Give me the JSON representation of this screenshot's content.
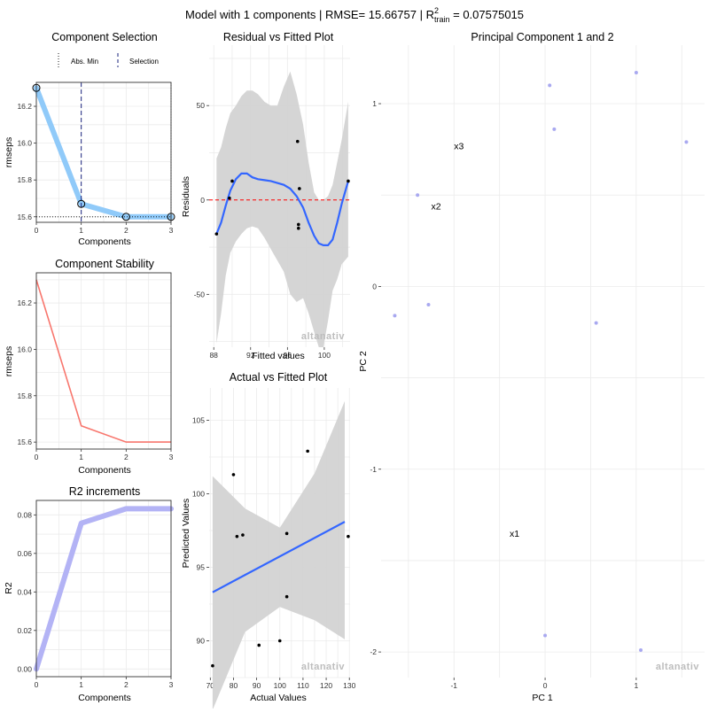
{
  "main_title": {
    "prefix": "Model with  1  components | RMSE=  15.66757 | R",
    "sup": "2",
    "sub": "train",
    "suffix": " = 0.07575015"
  },
  "watermark": "altanativ",
  "colors": {
    "selection_line": "#90caf9",
    "stability_line": "#f8766d",
    "r2_line": "#b3b3f5",
    "smooth_line": "#3366ff",
    "ribbon": "#d3d3d3",
    "zero_line": "#ff0000",
    "pca_points": "#a9a9f0",
    "grid": "#ebebeb",
    "watermark_dark": "#bdbdbd",
    "watermark_accent": "#f4a6b8"
  },
  "chart_data": [
    {
      "id": "component_selection",
      "type": "line",
      "title": "Component Selection",
      "xlabel": "Components",
      "ylabel": "rmseps",
      "x": [
        0,
        1,
        2,
        3
      ],
      "values": [
        16.3,
        15.67,
        15.6,
        15.6
      ],
      "xlim": [
        0,
        3
      ],
      "ylim": [
        15.57,
        16.33
      ],
      "xticks": [
        0,
        1,
        2,
        3
      ],
      "yticks": [
        15.6,
        15.8,
        16.0,
        16.2
      ],
      "ytick_labels": [
        "15.6",
        "15.8",
        "16.0",
        "16.2"
      ],
      "abs_min_x": 3,
      "abs_min_y": 15.6,
      "selection_x": 1,
      "legend": [
        "Abs. Min",
        "Selection"
      ]
    },
    {
      "id": "component_stability",
      "type": "line",
      "title": "Component Stability",
      "xlabel": "Components",
      "ylabel": "rmseps",
      "x": [
        0,
        1,
        2,
        3
      ],
      "values": [
        16.3,
        15.67,
        15.6,
        15.6
      ],
      "xlim": [
        0,
        3
      ],
      "ylim": [
        15.57,
        16.33
      ],
      "xticks": [
        0,
        1,
        2,
        3
      ],
      "yticks": [
        15.6,
        15.8,
        16.0,
        16.2
      ],
      "ytick_labels": [
        "15.6",
        "15.8",
        "16.0",
        "16.2"
      ]
    },
    {
      "id": "r2_increments",
      "type": "line",
      "title": "R2 increments",
      "xlabel": "Components",
      "ylabel": "R2",
      "x": [
        0,
        1,
        2,
        3
      ],
      "values": [
        0.0,
        0.0757,
        0.0832,
        0.0832
      ],
      "xlim": [
        0,
        3
      ],
      "ylim": [
        -0.004,
        0.0875
      ],
      "xticks": [
        0,
        1,
        2,
        3
      ],
      "yticks": [
        0,
        0.02,
        0.04,
        0.06,
        0.08
      ],
      "ytick_labels": [
        "0.00",
        "0.02",
        "0.04",
        "0.06",
        "0.08"
      ]
    },
    {
      "id": "residual_vs_fitted",
      "type": "scatter",
      "title": "Residual vs Fitted Plot",
      "xlabel": "Fitted values",
      "ylabel": "Residuals",
      "xlim": [
        87.5,
        102.8
      ],
      "ylim": [
        -78,
        82
      ],
      "xticks": [
        88,
        92,
        96,
        100
      ],
      "yticks": [
        -50,
        0,
        50
      ],
      "points": [
        {
          "x": 88.3,
          "y": -18
        },
        {
          "x": 89.7,
          "y": 1
        },
        {
          "x": 90.0,
          "y": 10
        },
        {
          "x": 97.1,
          "y": 31
        },
        {
          "x": 97.3,
          "y": 6
        },
        {
          "x": 97.2,
          "y": -13
        },
        {
          "x": 97.2,
          "y": -15
        },
        {
          "x": 102.6,
          "y": 10
        }
      ],
      "smooth": [
        {
          "x": 88.3,
          "y": -18
        },
        {
          "x": 88.8,
          "y": -12
        },
        {
          "x": 89.3,
          "y": -3
        },
        {
          "x": 89.8,
          "y": 5
        },
        {
          "x": 90.4,
          "y": 11
        },
        {
          "x": 91.0,
          "y": 14
        },
        {
          "x": 91.6,
          "y": 14
        },
        {
          "x": 92.2,
          "y": 12
        },
        {
          "x": 92.8,
          "y": 11
        },
        {
          "x": 93.5,
          "y": 10.5
        },
        {
          "x": 94.2,
          "y": 10
        },
        {
          "x": 94.9,
          "y": 9
        },
        {
          "x": 95.6,
          "y": 8
        },
        {
          "x": 96.3,
          "y": 6
        },
        {
          "x": 97.0,
          "y": 2
        },
        {
          "x": 97.7,
          "y": -4
        },
        {
          "x": 98.3,
          "y": -12
        },
        {
          "x": 98.9,
          "y": -19
        },
        {
          "x": 99.4,
          "y": -23
        },
        {
          "x": 99.9,
          "y": -24
        },
        {
          "x": 100.4,
          "y": -24
        },
        {
          "x": 100.9,
          "y": -21
        },
        {
          "x": 101.4,
          "y": -12
        },
        {
          "x": 101.9,
          "y": -2
        },
        {
          "x": 102.6,
          "y": 10
        }
      ],
      "band_upper": [
        22,
        28,
        38,
        46,
        50,
        55,
        58,
        58,
        56,
        52,
        50,
        50,
        60,
        68,
        56,
        40,
        20,
        4,
        0,
        0,
        2,
        8,
        20,
        32,
        52
      ],
      "band_lower": [
        -76,
        -60,
        -40,
        -28,
        -22,
        -18,
        -15,
        -14,
        -15,
        -20,
        -26,
        -32,
        -38,
        -50,
        -54,
        -52,
        -60,
        -70,
        -78,
        -78,
        -64,
        -48,
        -42,
        -34,
        -30
      ],
      "reference_y": 0
    },
    {
      "id": "actual_vs_fitted",
      "type": "scatter",
      "title": "Actual vs Fitted Plot",
      "xlabel": "Actual Values",
      "ylabel": "Predicted Values",
      "xlim": [
        69.5,
        130.3
      ],
      "ylim": [
        87.5,
        107.2
      ],
      "xticks": [
        70,
        80,
        90,
        100,
        110,
        120,
        130
      ],
      "yticks": [
        90,
        95,
        100,
        105
      ],
      "points": [
        {
          "x": 71,
          "y": 88.3
        },
        {
          "x": 80,
          "y": 101.3
        },
        {
          "x": 81.5,
          "y": 97.1
        },
        {
          "x": 84,
          "y": 97.2
        },
        {
          "x": 91,
          "y": 89.7
        },
        {
          "x": 100,
          "y": 90.0
        },
        {
          "x": 103,
          "y": 97.3
        },
        {
          "x": 103,
          "y": 93.0
        },
        {
          "x": 112,
          "y": 102.9
        },
        {
          "x": 129.5,
          "y": 97.1
        }
      ],
      "smooth": [
        {
          "x": 71,
          "y": 93.3
        },
        {
          "x": 128,
          "y": 98.1
        }
      ],
      "band_upper": [
        {
          "x": 71,
          "y": 101.2
        },
        {
          "x": 85,
          "y": 99.0
        },
        {
          "x": 100,
          "y": 97.7
        },
        {
          "x": 115,
          "y": 101.4
        },
        {
          "x": 128,
          "y": 106.3
        }
      ],
      "band_lower": [
        {
          "x": 71,
          "y": 85.3
        },
        {
          "x": 85,
          "y": 90.6
        },
        {
          "x": 100,
          "y": 92.3
        },
        {
          "x": 115,
          "y": 91.4
        },
        {
          "x": 128,
          "y": 90.1
        }
      ]
    },
    {
      "id": "principal_components",
      "type": "scatter",
      "title": "Principal Component 1 and 2",
      "xlabel": "PC 1",
      "ylabel": "PC 2",
      "xlim": [
        -1.8,
        1.75
      ],
      "ylim": [
        -2.14,
        1.32
      ],
      "xticks": [
        -1,
        0,
        1
      ],
      "yticks": [
        -2,
        -1,
        0,
        1
      ],
      "points": [
        {
          "x": 0.05,
          "y": 1.1
        },
        {
          "x": 1.0,
          "y": 1.17
        },
        {
          "x": 0.1,
          "y": 0.86
        },
        {
          "x": 1.55,
          "y": 0.79
        },
        {
          "x": -1.4,
          "y": 0.5
        },
        {
          "x": -1.28,
          "y": -0.1
        },
        {
          "x": -1.65,
          "y": -0.16
        },
        {
          "x": 0.56,
          "y": -0.2
        },
        {
          "x": 0.0,
          "y": -1.91
        },
        {
          "x": 1.05,
          "y": -1.99
        }
      ],
      "labels": [
        {
          "text": "x3",
          "x": -1.0,
          "y": 0.77
        },
        {
          "text": "x2",
          "x": -1.25,
          "y": 0.44
        },
        {
          "text": "x1",
          "x": -0.39,
          "y": -1.35
        }
      ]
    }
  ]
}
